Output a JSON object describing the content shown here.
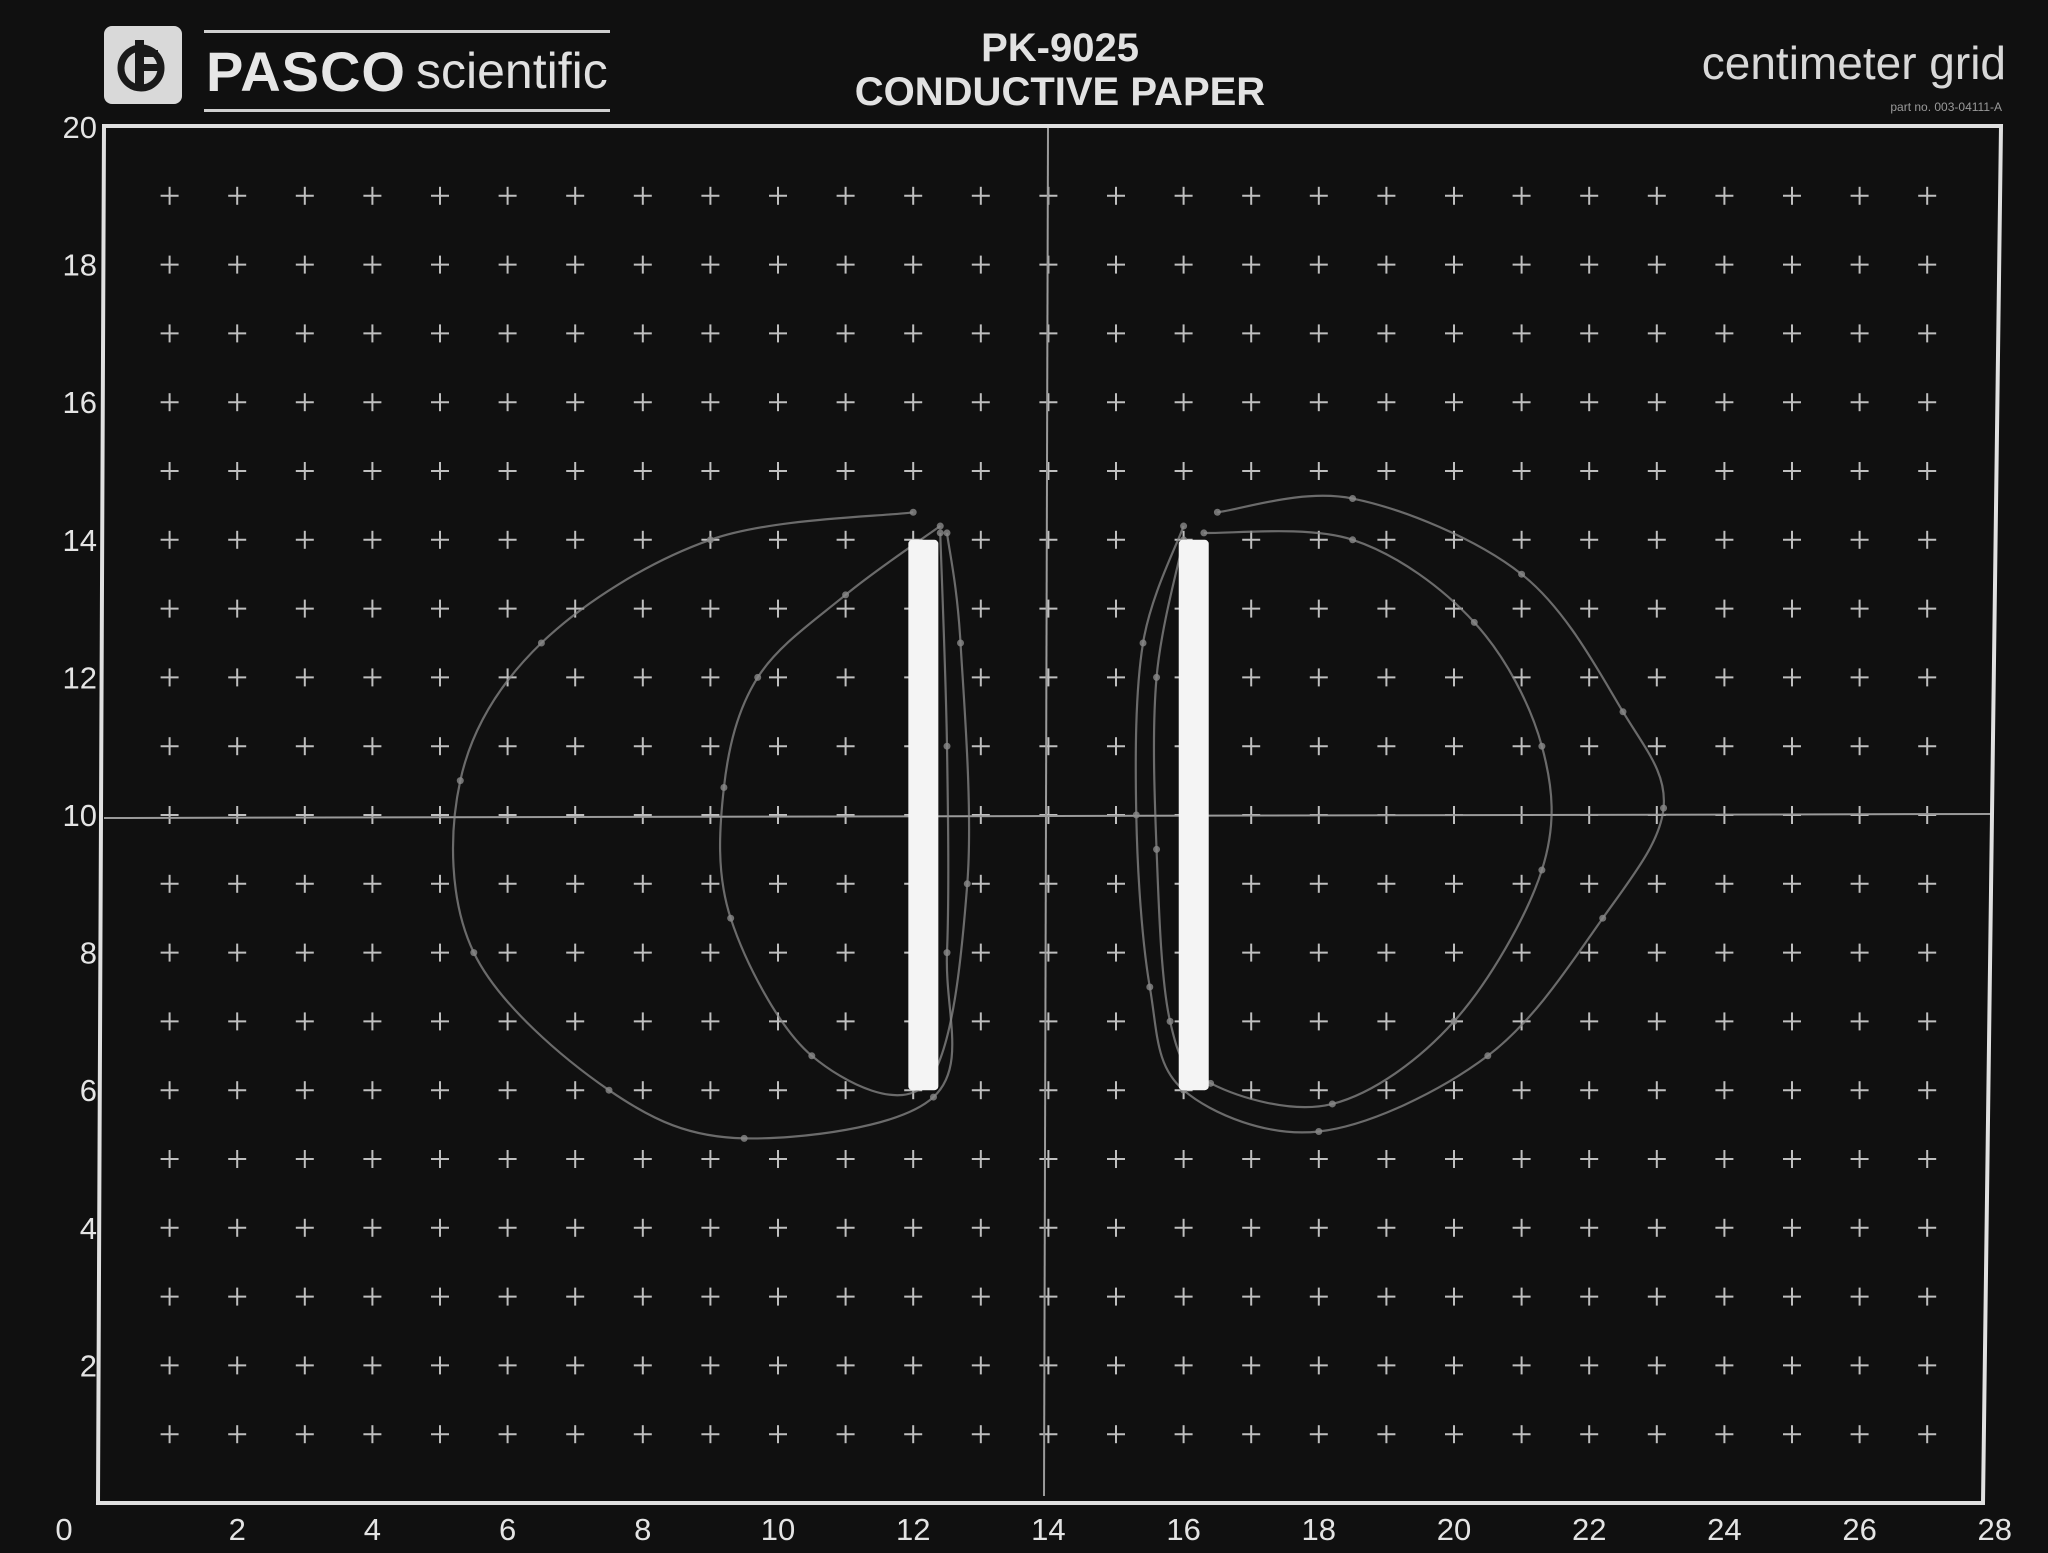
{
  "header": {
    "brand_bold": "PASCO",
    "brand_light": "scientific",
    "model": "PK-9025",
    "product": "CONDUCTIVE PAPER",
    "grid_name": "centimeter grid",
    "part_no": "part no. 003-04111-A"
  },
  "axes": {
    "x_ticks": [
      "0",
      "2",
      "4",
      "6",
      "8",
      "10",
      "12",
      "14",
      "16",
      "18",
      "20",
      "22",
      "24",
      "26",
      "28"
    ],
    "y_ticks": [
      "20",
      "18",
      "16",
      "14",
      "12",
      "10",
      "8",
      "6",
      "4",
      "2"
    ],
    "x_range": [
      0,
      28
    ],
    "y_range": [
      0,
      20
    ]
  },
  "colors": {
    "paper": "#101010",
    "grid": "#bfbfbf",
    "electrode": "#f4f4f4",
    "pencil": "#8a8a8a"
  },
  "electrodes": [
    {
      "x": 12.15,
      "y_from": 6,
      "y_to": 14
    },
    {
      "x": 16.15,
      "y_from": 6,
      "y_to": 14
    }
  ],
  "equipotential_sketches": [
    [
      [
        12.0,
        14.4
      ],
      [
        9.0,
        14.0
      ],
      [
        6.5,
        12.5
      ],
      [
        5.3,
        10.5
      ],
      [
        5.5,
        8.0
      ],
      [
        7.5,
        6.0
      ],
      [
        9.5,
        5.3
      ],
      [
        12.3,
        5.9
      ],
      [
        12.5,
        8.0
      ],
      [
        12.5,
        11.0
      ],
      [
        12.4,
        14.1
      ]
    ],
    [
      [
        12.4,
        14.2
      ],
      [
        11.0,
        13.2
      ],
      [
        9.7,
        12.0
      ],
      [
        9.2,
        10.4
      ],
      [
        9.3,
        8.5
      ],
      [
        10.5,
        6.5
      ],
      [
        12.2,
        6.1
      ],
      [
        12.8,
        9.0
      ],
      [
        12.7,
        12.5
      ],
      [
        12.5,
        14.1
      ]
    ],
    [
      [
        16.0,
        14.2
      ],
      [
        15.4,
        12.5
      ],
      [
        15.3,
        10.0
      ],
      [
        15.5,
        7.5
      ],
      [
        16.0,
        6.0
      ],
      [
        18.0,
        5.4
      ],
      [
        20.5,
        6.5
      ],
      [
        22.2,
        8.5
      ],
      [
        23.1,
        10.1
      ],
      [
        22.5,
        11.5
      ],
      [
        21.0,
        13.5
      ],
      [
        18.5,
        14.6
      ],
      [
        16.5,
        14.4
      ]
    ],
    [
      [
        16.0,
        14.0
      ],
      [
        15.6,
        12.0
      ],
      [
        15.6,
        9.5
      ],
      [
        15.8,
        7.0
      ],
      [
        16.4,
        6.1
      ],
      [
        18.2,
        5.8
      ],
      [
        20.0,
        7.0
      ],
      [
        21.3,
        9.2
      ],
      [
        21.3,
        11.0
      ],
      [
        20.3,
        12.8
      ],
      [
        18.5,
        14.0
      ],
      [
        16.3,
        14.1
      ]
    ]
  ]
}
